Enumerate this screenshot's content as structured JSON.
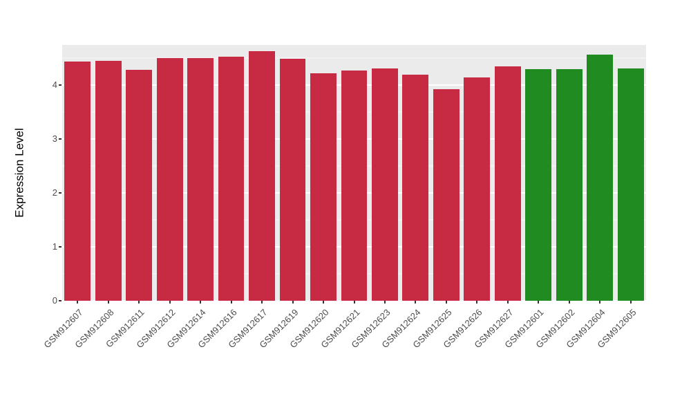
{
  "chart_data": {
    "type": "bar",
    "title": "",
    "xlabel": "",
    "ylabel": "Expression Level",
    "ylim": [
      0,
      4.75
    ],
    "yticks": [
      0,
      1,
      2,
      3,
      4
    ],
    "minor_yticks": [
      0.5,
      1.5,
      2.5,
      3.5,
      4.5
    ],
    "grid": true,
    "legend_position": "none",
    "panel_background": "#EBEBEB",
    "grid_color": "#FFFFFF",
    "categories": [
      "GSM912607",
      "GSM912608",
      "GSM912611",
      "GSM912612",
      "GSM912614",
      "GSM912616",
      "GSM912617",
      "GSM912619",
      "GSM912620",
      "GSM912621",
      "GSM912623",
      "GSM912624",
      "GSM912625",
      "GSM912626",
      "GSM912627",
      "GSM912601",
      "GSM912602",
      "GSM912604",
      "GSM912605"
    ],
    "values": [
      4.44,
      4.46,
      4.29,
      4.5,
      4.51,
      4.53,
      4.63,
      4.49,
      4.23,
      4.27,
      4.31,
      4.2,
      3.93,
      4.15,
      4.35,
      4.3,
      4.3,
      4.57,
      4.32
    ],
    "colors": [
      "#C62B43",
      "#C62B43",
      "#C62B43",
      "#C62B43",
      "#C62B43",
      "#C62B43",
      "#C62B43",
      "#C62B43",
      "#C62B43",
      "#C62B43",
      "#C62B43",
      "#C62B43",
      "#C62B43",
      "#C62B43",
      "#C62B43",
      "#208B20",
      "#208B20",
      "#208B20",
      "#208B20"
    ],
    "group_colors": {
      "red_group": "#C62B43",
      "green_group": "#208B20"
    }
  }
}
